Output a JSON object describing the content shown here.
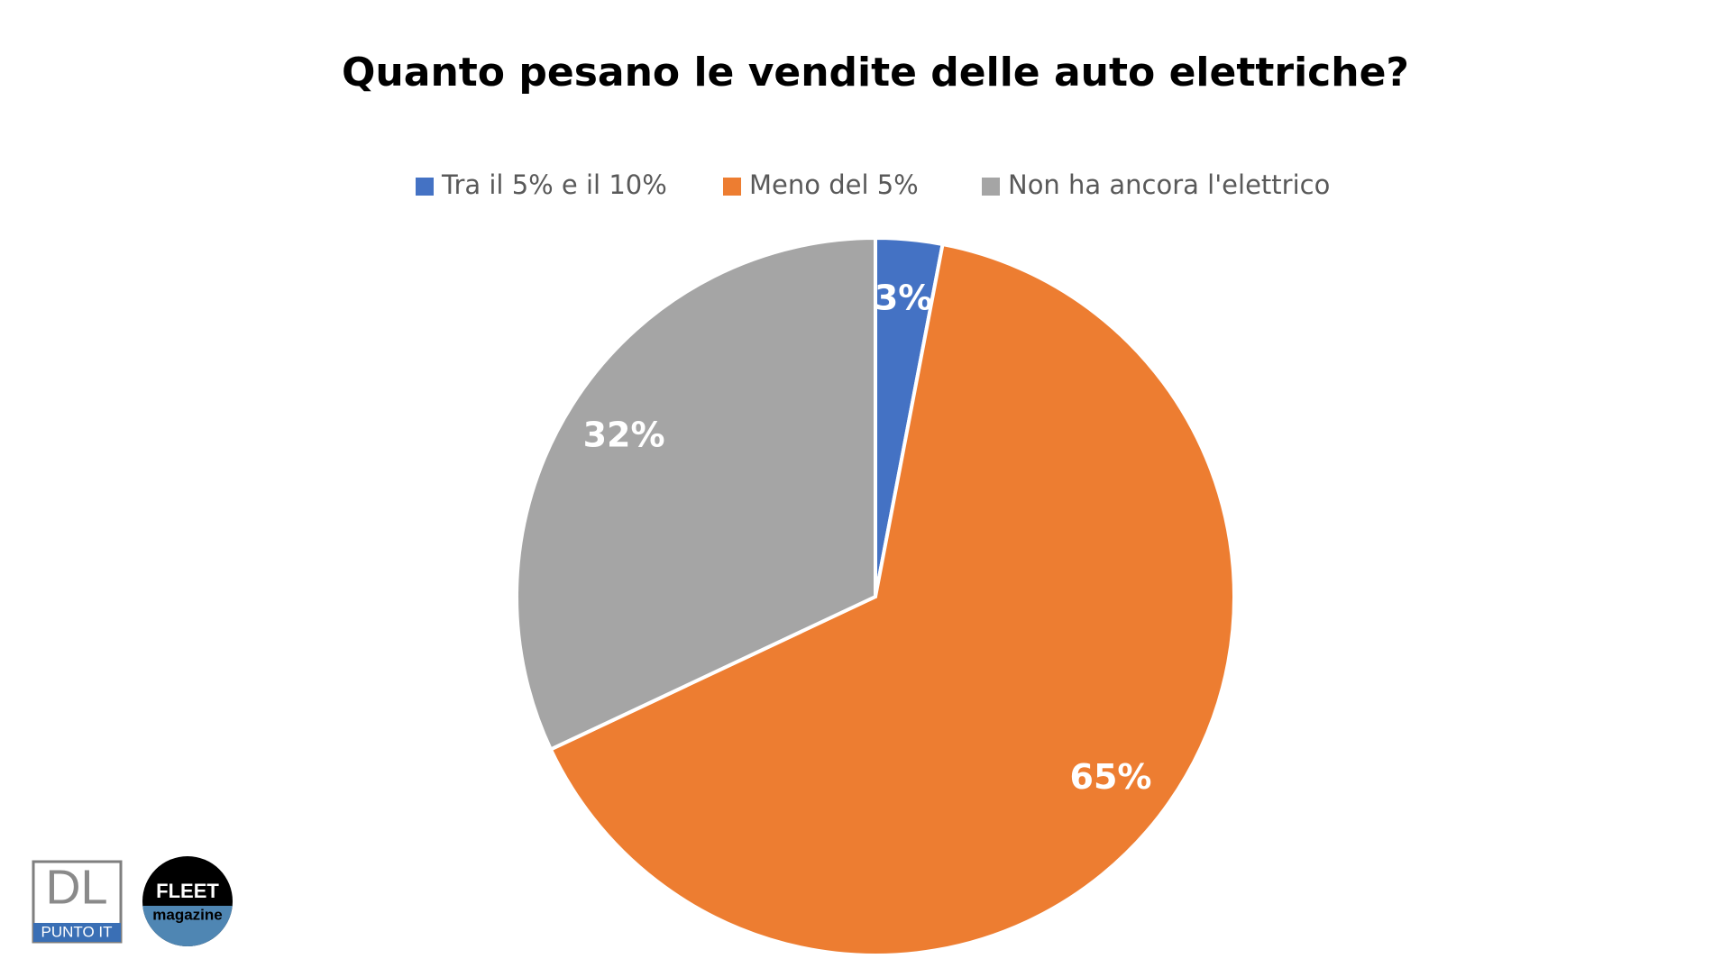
{
  "chart_data": {
    "type": "pie",
    "title": "Quanto pesano le vendite delle auto elettriche?",
    "categories": [
      "Tra il 5% e il 10%",
      "Meno del 5%",
      "Non ha ancora l'elettrico"
    ],
    "values": [
      3,
      65,
      32
    ],
    "value_labels": [
      "3%",
      "65%",
      "32%"
    ],
    "colors": [
      "#4472c4",
      "#ed7d31",
      "#a5a5a5"
    ],
    "legend": "top"
  },
  "logos": {
    "dl": "DL",
    "dl_sub": "PUNTO IT",
    "fleet": "FLEET",
    "fleet_sub": "magazine"
  }
}
